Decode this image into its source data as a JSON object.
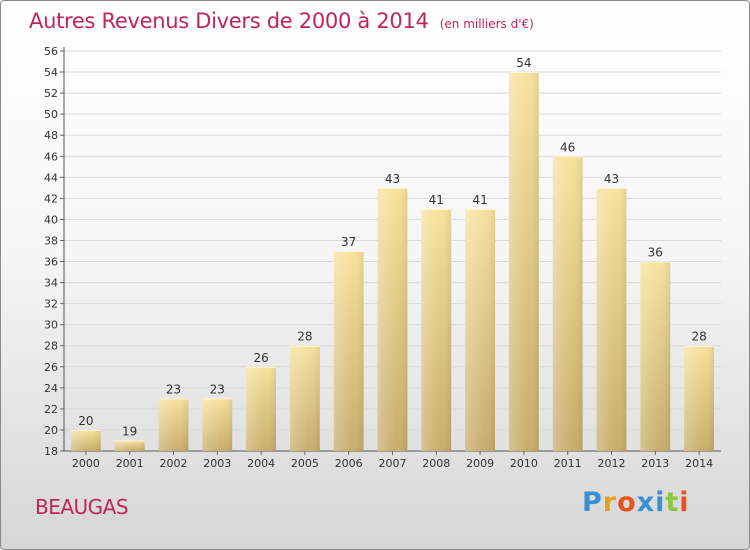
{
  "header": {
    "title": "Autres Revenus Divers de 2000 à 2014",
    "unit": "(en milliers d'€)"
  },
  "footer": {
    "place": "BEAUGAS",
    "logo_letters": [
      "P",
      "r",
      "o",
      "x",
      "i",
      "t",
      "i"
    ],
    "logo_colors": [
      "#3a8fd6",
      "#e5a11e",
      "#e5541c",
      "#3a8fd6",
      "#3a8fd6",
      "#8cc63f",
      "#e5541c"
    ]
  },
  "colors": {
    "title": "#c0245c",
    "bar_light": "#f7e29e",
    "bar_dark": "#c8ad6c",
    "grid": "#d9d9d9"
  },
  "chart_data": {
    "type": "bar",
    "title": "Autres Revenus Divers de 2000 à 2014",
    "categories": [
      "2000",
      "2001",
      "2002",
      "2003",
      "2004",
      "2005",
      "2006",
      "2007",
      "2008",
      "2009",
      "2010",
      "2011",
      "2012",
      "2013",
      "2014"
    ],
    "values": [
      20,
      19,
      23,
      23,
      26,
      28,
      37,
      43,
      41,
      41,
      54,
      46,
      43,
      36,
      28
    ],
    "ylim": [
      18,
      56
    ],
    "yticks": [
      18,
      20,
      22,
      24,
      26,
      28,
      30,
      32,
      34,
      36,
      38,
      40,
      42,
      44,
      46,
      48,
      50,
      52,
      54,
      56
    ],
    "grid": true,
    "data_labels": true
  }
}
